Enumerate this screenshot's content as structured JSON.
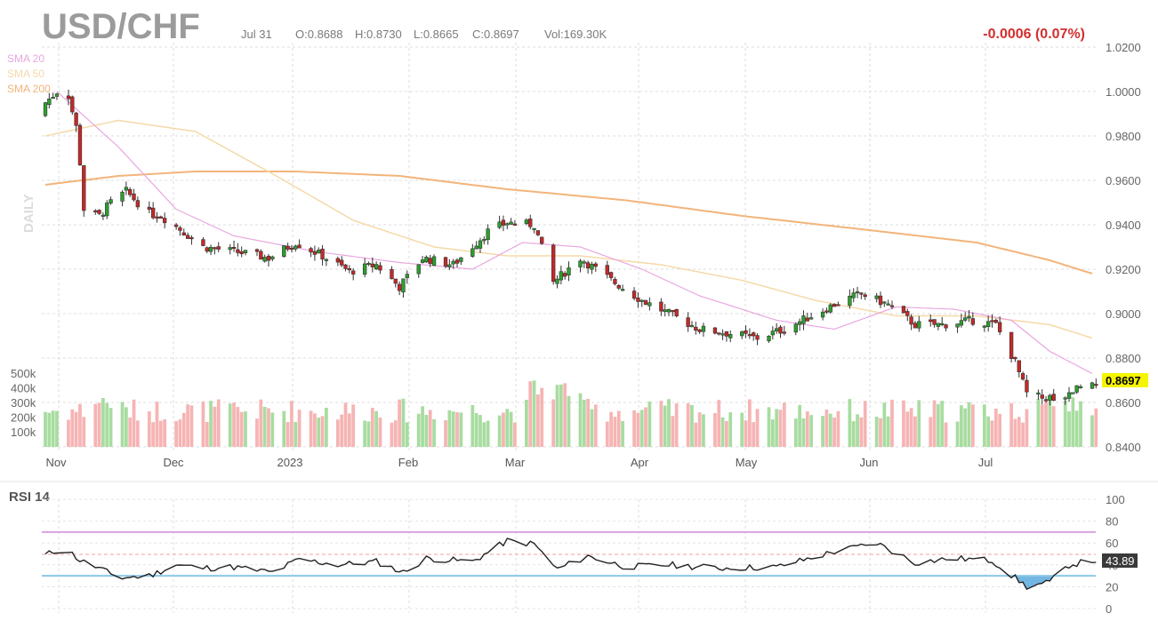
{
  "header": {
    "symbol": "USD/CHF",
    "date": "Jul 31",
    "open": "O:0.8688",
    "high": "H:0.8730",
    "low": "L:0.8665",
    "close": "C:0.8697",
    "volume": "Vol:169.30K",
    "change": "-0.0006 (0.07%)"
  },
  "legend": [
    "SMA 20",
    "SMA 50",
    "SMA 200"
  ],
  "period_label": "DAILY",
  "price_axis": {
    "ticks": [
      "1.0200",
      "1.0000",
      "0.9800",
      "0.9600",
      "0.9400",
      "0.9200",
      "0.9000",
      "0.8800",
      "0.8600",
      "0.8400"
    ],
    "last_price_label": "0.8697"
  },
  "volume_axis": {
    "ticks": [
      "500k",
      "400k",
      "300k",
      "200k",
      "100k"
    ]
  },
  "x_axis": {
    "ticks": [
      "Nov",
      "Dec",
      "2023",
      "Feb",
      "Mar",
      "Apr",
      "May",
      "Jun",
      "Jul"
    ]
  },
  "rsi": {
    "title": "RSI 14",
    "ticks": [
      "100",
      "80",
      "60",
      "40",
      "20",
      "0"
    ],
    "last_label": "43.89"
  },
  "colors": {
    "up": "#2ca02c",
    "down": "#c62828",
    "vol_up": "#a8dca0",
    "vol_down": "#f6b4b4",
    "sma20": "#e9a6e0",
    "sma50": "#f5d9a8",
    "sma200": "#f3b47a",
    "rsi_line": "#222222",
    "rsi_70": "#d9a3df",
    "rsi_30": "#8cc8e8",
    "change": "#d32f2f",
    "last_badge": "#f5f500"
  },
  "chart_data": {
    "type": "candlestick",
    "title": "USD/CHF",
    "period": "DAILY",
    "x_range": [
      "Nov 2022",
      "Jul 31 2023"
    ],
    "y_range": [
      0.84,
      1.02
    ],
    "last": {
      "date": "Jul 31",
      "open": 0.8688,
      "high": 0.873,
      "low": 0.8665,
      "close": 0.8697,
      "volume": "169.30K",
      "change": -0.0006,
      "change_pct": "0.07%"
    },
    "close_keypoints": [
      {
        "t": "Nov 1",
        "v": 0.995
      },
      {
        "t": "Nov 4",
        "v": 1.0
      },
      {
        "t": "Nov 7",
        "v": 0.998
      },
      {
        "t": "Nov 9",
        "v": 0.984
      },
      {
        "t": "Nov 10",
        "v": 0.968
      },
      {
        "t": "Nov 11",
        "v": 0.947
      },
      {
        "t": "Nov 15",
        "v": 0.944
      },
      {
        "t": "Nov 18",
        "v": 0.95
      },
      {
        "t": "Nov 22",
        "v": 0.955
      },
      {
        "t": "Nov 28",
        "v": 0.945
      },
      {
        "t": "Dec 1",
        "v": 0.944
      },
      {
        "t": "Dec 6",
        "v": 0.938
      },
      {
        "t": "Dec 12",
        "v": 0.93
      },
      {
        "t": "Dec 20",
        "v": 0.928
      },
      {
        "t": "Dec 29",
        "v": 0.925
      },
      {
        "t": "Jan 5",
        "v": 0.932
      },
      {
        "t": "Jan 12",
        "v": 0.926
      },
      {
        "t": "Jan 19",
        "v": 0.919
      },
      {
        "t": "Jan 26",
        "v": 0.922
      },
      {
        "t": "Feb 1",
        "v": 0.912
      },
      {
        "t": "Feb 7",
        "v": 0.925
      },
      {
        "t": "Feb 15",
        "v": 0.922
      },
      {
        "t": "Feb 24",
        "v": 0.937
      },
      {
        "t": "Mar 1",
        "v": 0.941
      },
      {
        "t": "Mar 8",
        "v": 0.94
      },
      {
        "t": "Mar 13",
        "v": 0.914
      },
      {
        "t": "Mar 20",
        "v": 0.925
      },
      {
        "t": "Mar 28",
        "v": 0.915
      },
      {
        "t": "Apr 5",
        "v": 0.906
      },
      {
        "t": "Apr 12",
        "v": 0.9
      },
      {
        "t": "Apr 20",
        "v": 0.893
      },
      {
        "t": "Apr 28",
        "v": 0.891
      },
      {
        "t": "May 5",
        "v": 0.889
      },
      {
        "t": "May 12",
        "v": 0.893
      },
      {
        "t": "May 19",
        "v": 0.899
      },
      {
        "t": "May 26",
        "v": 0.905
      },
      {
        "t": "Jun 1",
        "v": 0.909
      },
      {
        "t": "Jun 8",
        "v": 0.904
      },
      {
        "t": "Jun 15",
        "v": 0.895
      },
      {
        "t": "Jun 22",
        "v": 0.895
      },
      {
        "t": "Jun 30",
        "v": 0.897
      },
      {
        "t": "Jul 6",
        "v": 0.895
      },
      {
        "t": "Jul 11",
        "v": 0.878
      },
      {
        "t": "Jul 14",
        "v": 0.864
      },
      {
        "t": "Jul 18",
        "v": 0.862
      },
      {
        "t": "Jul 24",
        "v": 0.863
      },
      {
        "t": "Jul 28",
        "v": 0.868
      },
      {
        "t": "Jul 31",
        "v": 0.8697
      }
    ],
    "sma20_keypoints": [
      {
        "t": "Nov 4",
        "v": 1.0
      },
      {
        "t": "Nov 20",
        "v": 0.975
      },
      {
        "t": "Dec 5",
        "v": 0.947
      },
      {
        "t": "Dec 20",
        "v": 0.935
      },
      {
        "t": "Jan 10",
        "v": 0.928
      },
      {
        "t": "Feb 1",
        "v": 0.923
      },
      {
        "t": "Feb 20",
        "v": 0.92
      },
      {
        "t": "Mar 5",
        "v": 0.932
      },
      {
        "t": "Mar 20",
        "v": 0.93
      },
      {
        "t": "Apr 5",
        "v": 0.92
      },
      {
        "t": "Apr 20",
        "v": 0.908
      },
      {
        "t": "May 10",
        "v": 0.897
      },
      {
        "t": "May 25",
        "v": 0.893
      },
      {
        "t": "Jun 10",
        "v": 0.903
      },
      {
        "t": "Jun 25",
        "v": 0.902
      },
      {
        "t": "Jul 10",
        "v": 0.897
      },
      {
        "t": "Jul 20",
        "v": 0.883
      },
      {
        "t": "Jul 31",
        "v": 0.873
      }
    ],
    "sma50_keypoints": [
      {
        "t": "Nov 1",
        "v": 0.98
      },
      {
        "t": "Nov 20",
        "v": 0.987
      },
      {
        "t": "Dec 10",
        "v": 0.982
      },
      {
        "t": "Dec 31",
        "v": 0.962
      },
      {
        "t": "Jan 20",
        "v": 0.942
      },
      {
        "t": "Feb 10",
        "v": 0.93
      },
      {
        "t": "Mar 1",
        "v": 0.926
      },
      {
        "t": "Mar 20",
        "v": 0.926
      },
      {
        "t": "Apr 10",
        "v": 0.922
      },
      {
        "t": "May 1",
        "v": 0.915
      },
      {
        "t": "May 20",
        "v": 0.906
      },
      {
        "t": "Jun 10",
        "v": 0.899
      },
      {
        "t": "Jul 1",
        "v": 0.899
      },
      {
        "t": "Jul 20",
        "v": 0.895
      },
      {
        "t": "Jul 31",
        "v": 0.889
      }
    ],
    "sma200_keypoints": [
      {
        "t": "Nov 1",
        "v": 0.958
      },
      {
        "t": "Nov 20",
        "v": 0.962
      },
      {
        "t": "Dec 10",
        "v": 0.964
      },
      {
        "t": "Jan 5",
        "v": 0.964
      },
      {
        "t": "Feb 1",
        "v": 0.962
      },
      {
        "t": "Mar 1",
        "v": 0.956
      },
      {
        "t": "Apr 1",
        "v": 0.951
      },
      {
        "t": "May 1",
        "v": 0.944
      },
      {
        "t": "Jun 1",
        "v": 0.938
      },
      {
        "t": "Jul 1",
        "v": 0.932
      },
      {
        "t": "Jul 20",
        "v": 0.924
      },
      {
        "t": "Jul 31",
        "v": 0.918
      }
    ],
    "rsi_keypoints": [
      {
        "t": "Nov 1",
        "v": 49
      },
      {
        "t": "Nov 6",
        "v": 56
      },
      {
        "t": "Nov 10",
        "v": 44
      },
      {
        "t": "Nov 15",
        "v": 37
      },
      {
        "t": "Nov 20",
        "v": 28
      },
      {
        "t": "Nov 28",
        "v": 30
      },
      {
        "t": "Dec 5",
        "v": 40
      },
      {
        "t": "Dec 12",
        "v": 37
      },
      {
        "t": "Dec 20",
        "v": 38
      },
      {
        "t": "Dec 30",
        "v": 33
      },
      {
        "t": "Jan 6",
        "v": 45
      },
      {
        "t": "Jan 16",
        "v": 40
      },
      {
        "t": "Jan 26",
        "v": 43
      },
      {
        "t": "Feb 2",
        "v": 33
      },
      {
        "t": "Feb 8",
        "v": 46
      },
      {
        "t": "Feb 20",
        "v": 43
      },
      {
        "t": "Mar 1",
        "v": 62
      },
      {
        "t": "Mar 8",
        "v": 59
      },
      {
        "t": "Mar 14",
        "v": 36
      },
      {
        "t": "Mar 22",
        "v": 48
      },
      {
        "t": "Apr 1",
        "v": 38
      },
      {
        "t": "Apr 12",
        "v": 40
      },
      {
        "t": "Apr 25",
        "v": 37
      },
      {
        "t": "May 10",
        "v": 38
      },
      {
        "t": "May 25",
        "v": 52
      },
      {
        "t": "Jun 5",
        "v": 60
      },
      {
        "t": "Jun 15",
        "v": 42
      },
      {
        "t": "Jun 25",
        "v": 46
      },
      {
        "t": "Jul 5",
        "v": 44
      },
      {
        "t": "Jul 11",
        "v": 28
      },
      {
        "t": "Jul 14",
        "v": 20
      },
      {
        "t": "Jul 20",
        "v": 24
      },
      {
        "t": "Jul 25",
        "v": 40
      },
      {
        "t": "Jul 31",
        "v": 43.89
      }
    ],
    "rsi_levels": [
      30,
      70
    ],
    "rsi_range": [
      0,
      100
    ],
    "volume_range": [
      "0",
      "500k"
    ]
  }
}
